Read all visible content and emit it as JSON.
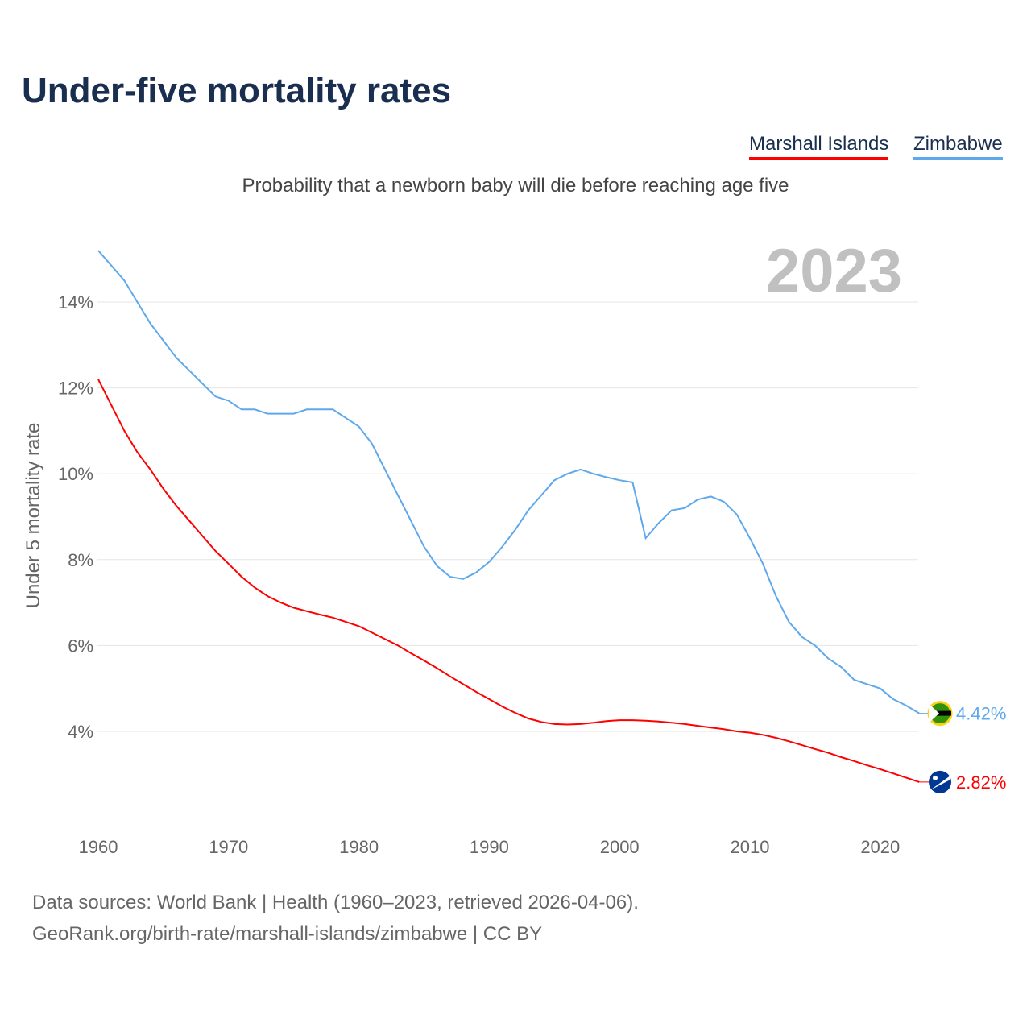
{
  "chart_data": {
    "type": "line",
    "title": "Under-five mortality rates",
    "subtitle": "Probability that a newborn baby will die before reaching age five",
    "year_label": "2023",
    "ylabel": "Under 5 mortality rate",
    "xlabel": "",
    "ylim": [
      2,
      15.5
    ],
    "xlim": [
      1960,
      2023
    ],
    "grid": true,
    "legend_placement": "top-right",
    "yticks": [
      4,
      6,
      8,
      10,
      12,
      14
    ],
    "ytick_labels": [
      "4%",
      "6%",
      "8%",
      "10%",
      "12%",
      "14%"
    ],
    "xticks": [
      1960,
      1970,
      1980,
      1990,
      2000,
      2010,
      2020
    ],
    "xtick_labels": [
      "1960",
      "1970",
      "1980",
      "1990",
      "2000",
      "2010",
      "2020"
    ],
    "x": [
      1960,
      1961,
      1962,
      1963,
      1964,
      1965,
      1966,
      1967,
      1968,
      1969,
      1970,
      1971,
      1972,
      1973,
      1974,
      1975,
      1976,
      1977,
      1978,
      1979,
      1980,
      1981,
      1982,
      1983,
      1984,
      1985,
      1986,
      1987,
      1988,
      1989,
      1990,
      1991,
      1992,
      1993,
      1994,
      1995,
      1996,
      1997,
      1998,
      1999,
      2000,
      2001,
      2002,
      2003,
      2004,
      2005,
      2006,
      2007,
      2008,
      2009,
      2010,
      2011,
      2012,
      2013,
      2014,
      2015,
      2016,
      2017,
      2018,
      2019,
      2020,
      2021,
      2022,
      2023
    ],
    "series": [
      {
        "name": "Marshall Islands",
        "color": "#ff0000",
        "end_label": "2.82%",
        "values": [
          12.2,
          11.6,
          11.0,
          10.5,
          10.1,
          9.65,
          9.25,
          8.9,
          8.55,
          8.2,
          7.9,
          7.6,
          7.35,
          7.15,
          7.0,
          6.88,
          6.8,
          6.72,
          6.65,
          6.55,
          6.45,
          6.3,
          6.15,
          6.0,
          5.82,
          5.65,
          5.47,
          5.28,
          5.1,
          4.92,
          4.75,
          4.58,
          4.43,
          4.3,
          4.22,
          4.17,
          4.16,
          4.17,
          4.2,
          4.24,
          4.26,
          4.26,
          4.25,
          4.23,
          4.2,
          4.17,
          4.13,
          4.09,
          4.05,
          4.0,
          3.97,
          3.92,
          3.85,
          3.77,
          3.68,
          3.59,
          3.5,
          3.4,
          3.31,
          3.21,
          3.12,
          3.02,
          2.92,
          2.82
        ]
      },
      {
        "name": "Zimbabwe",
        "color": "#5ea8ec",
        "end_label": "4.42%",
        "values": [
          15.2,
          14.85,
          14.5,
          14.0,
          13.5,
          13.1,
          12.7,
          12.4,
          12.1,
          11.8,
          11.7,
          11.5,
          11.5,
          11.4,
          11.4,
          11.4,
          11.5,
          11.5,
          11.5,
          11.3,
          11.1,
          10.7,
          10.1,
          9.5,
          8.9,
          8.3,
          7.85,
          7.6,
          7.55,
          7.7,
          7.95,
          8.3,
          8.7,
          9.15,
          9.5,
          9.85,
          10.0,
          10.1,
          10.0,
          9.92,
          9.85,
          9.8,
          8.5,
          8.85,
          9.15,
          9.2,
          9.4,
          9.47,
          9.35,
          9.05,
          8.5,
          7.9,
          7.15,
          6.55,
          6.2,
          6.0,
          5.7,
          5.5,
          5.2,
          5.1,
          5.0,
          4.75,
          4.6,
          4.42
        ]
      }
    ]
  },
  "footer": {
    "line1": "Data sources: World Bank | Health (1960–2023, retrieved 2026-04-06).",
    "line2": "GeoRank.org/birth-rate/marshall-islands/zimbabwe | CC BY"
  }
}
